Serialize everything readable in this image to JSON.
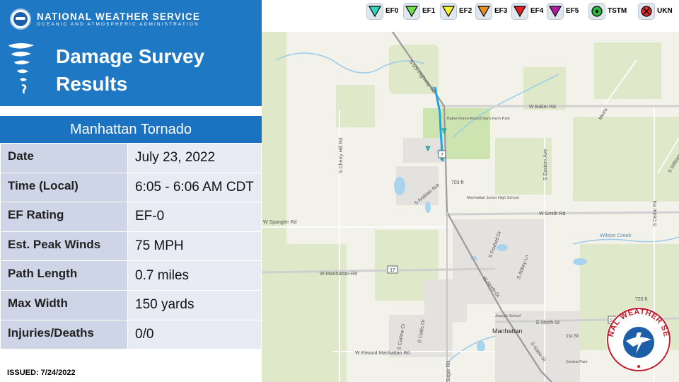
{
  "header": {
    "agency_name": "NATIONAL WEATHER SERVICE",
    "agency_sub": "OCEANIC AND ATMOSPHERIC ADMINISTRATION",
    "title_line1": "Damage Survey",
    "title_line2": "Results",
    "brand_color": "#1f78c4"
  },
  "event_name": "Manhattan Tornado",
  "info_rows": [
    {
      "label": "Date",
      "value": "July 23, 2022"
    },
    {
      "label": "Time (Local)",
      "value": "6:05 - 6:06 AM CDT"
    },
    {
      "label": "EF Rating",
      "value": "EF-0"
    },
    {
      "label": "Est. Peak Winds",
      "value": "75 MPH"
    },
    {
      "label": "Path Length",
      "value": "0.7 miles"
    },
    {
      "label": "Max Width",
      "value": "150 yards"
    },
    {
      "label": "Injuries/Deaths",
      "value": "0/0"
    }
  ],
  "issued": "ISSUED:  7/24/2022",
  "legend": [
    {
      "label": "EF0",
      "color": "#33d6c0",
      "icon": "triangle-down-icon"
    },
    {
      "label": "EF1",
      "color": "#6ee04a",
      "icon": "triangle-down-icon"
    },
    {
      "label": "EF2",
      "color": "#f5f231",
      "icon": "triangle-down-icon"
    },
    {
      "label": "EF3",
      "color": "#e8911f",
      "icon": "triangle-down-icon"
    },
    {
      "label": "EF4",
      "color": "#e01f1f",
      "icon": "triangle-down-icon"
    },
    {
      "label": "EF5",
      "color": "#b01fa6",
      "icon": "triangle-down-icon"
    },
    {
      "label": "TSTM",
      "color": "#2fb53a",
      "icon": "circle-dot-icon"
    },
    {
      "label": "UKN",
      "color": "#e02a2a",
      "icon": "circle-x-icon"
    }
  ],
  "map": {
    "roads": {
      "baker": "W Baker Rd",
      "smith": "W Smith Rd",
      "spangler": "W Spangler Rd",
      "manhattan": "W-Manhattan-Rd",
      "north_st": "E-North-St",
      "elwood": "W Elwood Manhattan Rd",
      "highway": "S-US-Highway-52",
      "cherry_hill": "S Cherry Hill Rd",
      "eastern": "S Eastern Ave",
      "cedar": "S Cedar Rd",
      "arabian": "S Arabian Ave",
      "north_st_w": "W-North-St",
      "state_st": "S-State-St",
      "first_st": "1st St",
      "foxford": "S Foxford Dr",
      "abbey": "S Abbey Ln",
      "carlow": "S Carlow Ct",
      "celtic": "S Celtic Dr",
      "sugar": "Sugar Rd",
      "metra": "Metra",
      "s_william": "S William"
    },
    "places": {
      "park": "Baker-Koren Round Barn Farm Park",
      "school": "Manhattan Junior High School",
      "joseph": "Joseph School",
      "town": "Manhattan",
      "central_park": "Central Park",
      "creek": "Wilson Creek"
    },
    "elevations": {
      "e1": "703 ft",
      "e2": "720 ft"
    },
    "route_shields": {
      "r1": "17",
      "r2": "7",
      "r3": "52"
    },
    "track_color": "#1aa7e6"
  },
  "seal": {
    "top": "NATIONAL WEATHER SERVICE"
  }
}
